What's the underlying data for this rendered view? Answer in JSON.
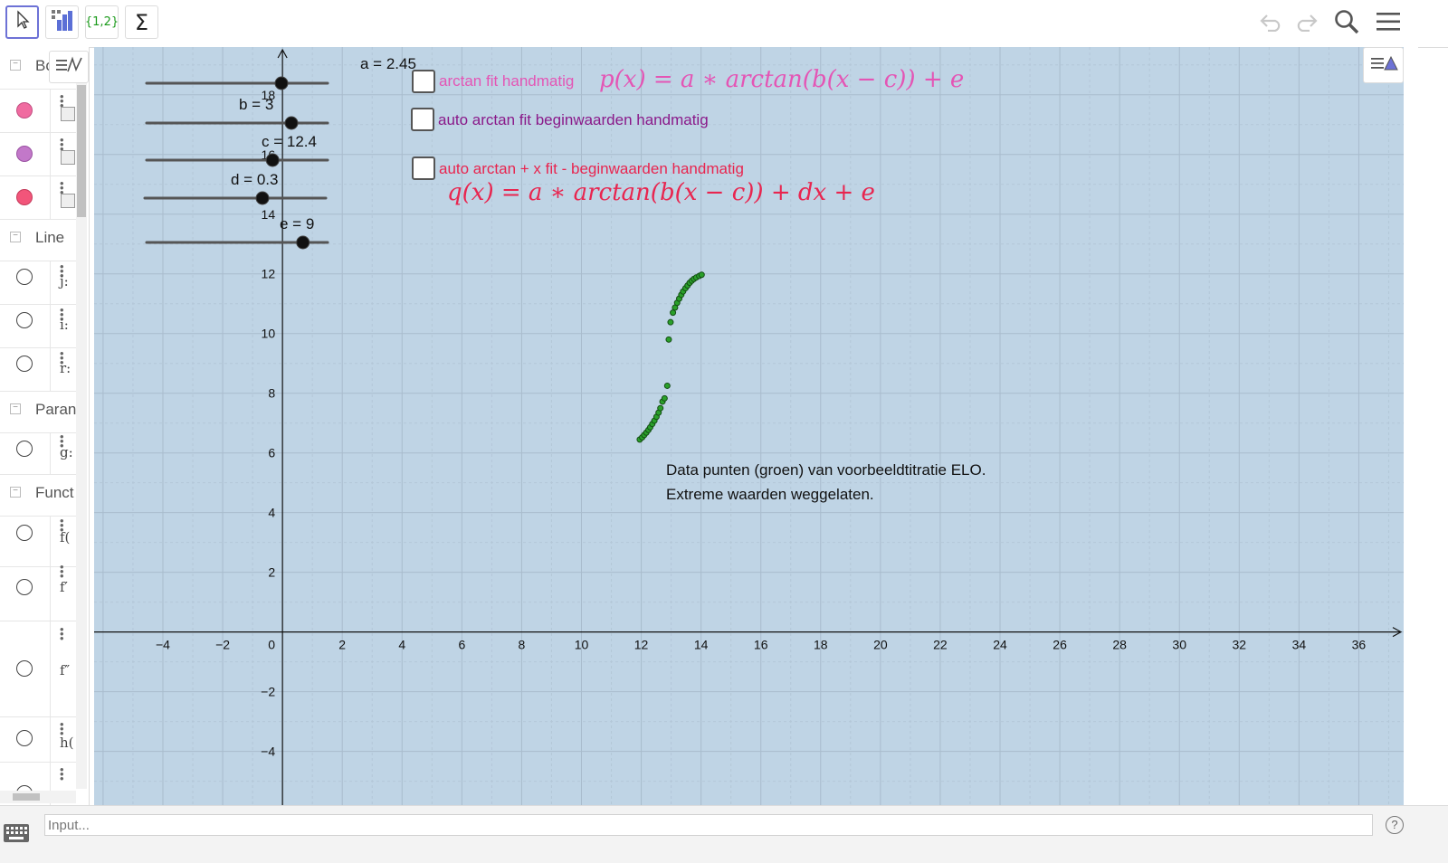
{
  "toolbar": {
    "tools": [
      {
        "name": "move-tool-button",
        "icon": "cursor-arrow-icon"
      },
      {
        "name": "statistics-tool-button",
        "icon": "bar-chart-icon"
      },
      {
        "name": "list-tool-button",
        "text": "{1,2}"
      },
      {
        "name": "sum-tool-button",
        "text": "Σ"
      }
    ],
    "right_icons": [
      "undo-icon",
      "redo-icon",
      "search-icon",
      "menu-icon"
    ]
  },
  "algebra": {
    "groups": [
      {
        "label": "Bo"
      },
      {
        "label": "Line"
      },
      {
        "label": "Paran"
      },
      {
        "label": "Funct"
      }
    ],
    "items": [
      {
        "label": "",
        "color": "#f06ba0",
        "filled": true
      },
      {
        "label": "",
        "color": "#c278c9",
        "filled": true
      },
      {
        "label": "",
        "color": "#f2557a",
        "filled": true
      },
      {
        "label": "j:",
        "filled": false
      },
      {
        "label": "i:",
        "filled": false
      },
      {
        "label": "r:",
        "filled": false
      },
      {
        "label": "g:",
        "filled": false
      },
      {
        "label": "f(",
        "filled": false
      },
      {
        "label": "f′",
        "filled": false
      },
      {
        "label": "f″",
        "filled": false
      },
      {
        "label": "h(",
        "filled": false
      },
      {
        "label": "",
        "filled": false
      }
    ]
  },
  "sliders": [
    {
      "label": "a = 2.45",
      "value": 2.45
    },
    {
      "label": "b = 3",
      "value": 3
    },
    {
      "label": "c = 12.4",
      "value": 12.4
    },
    {
      "label": "d = 0.3",
      "value": 0.3
    },
    {
      "label": "e = 9",
      "value": 9
    }
  ],
  "checkboxes": [
    {
      "label": "arctan fit handmatig",
      "color": "#e455b5",
      "checked": false
    },
    {
      "label": "auto arctan fit beginwaarden handmatig",
      "color": "#8a1a8a",
      "checked": false
    },
    {
      "label": "auto arctan + x fit - beginwaarden handmatig",
      "color": "#e8254f",
      "checked": false
    }
  ],
  "formulas": {
    "p": "p(x) = a ∗ arctan(b(x − c)) + e",
    "q": "q(x) = a ∗ arctan(b(x − c)) + dx + e",
    "p_color": "#e455b5",
    "q_color": "#e8254f"
  },
  "note": {
    "line1": "Data punten (groen) van voorbeeldtitratie ELO.",
    "line2": "Extreme waarden weggelaten."
  },
  "chart_data": {
    "type": "scatter",
    "x_ticks": [
      -4,
      -2,
      0,
      2,
      4,
      6,
      8,
      10,
      12,
      14,
      16,
      18,
      20,
      22,
      24,
      26,
      28,
      30,
      32,
      34,
      36
    ],
    "y_ticks": [
      -4,
      -2,
      2,
      4,
      6,
      8,
      10,
      12,
      14,
      16,
      18
    ],
    "xlim": [
      -6.3,
      37.5
    ],
    "ylim": [
      -5.8,
      19.6
    ],
    "grid": true,
    "point_color": "#2aa02a",
    "points": [
      [
        11.95,
        6.45
      ],
      [
        12.03,
        6.52
      ],
      [
        12.1,
        6.6
      ],
      [
        12.17,
        6.68
      ],
      [
        12.24,
        6.77
      ],
      [
        12.3,
        6.86
      ],
      [
        12.37,
        6.97
      ],
      [
        12.44,
        7.08
      ],
      [
        12.51,
        7.21
      ],
      [
        12.58,
        7.35
      ],
      [
        12.64,
        7.5
      ],
      [
        12.71,
        7.72
      ],
      [
        12.78,
        7.83
      ],
      [
        12.87,
        8.25
      ],
      [
        12.92,
        9.8
      ],
      [
        12.98,
        10.38
      ],
      [
        13.06,
        10.7
      ],
      [
        13.13,
        10.87
      ],
      [
        13.2,
        11.03
      ],
      [
        13.27,
        11.17
      ],
      [
        13.34,
        11.3
      ],
      [
        13.4,
        11.41
      ],
      [
        13.48,
        11.52
      ],
      [
        13.55,
        11.61
      ],
      [
        13.62,
        11.7
      ],
      [
        13.69,
        11.77
      ],
      [
        13.76,
        11.83
      ],
      [
        13.84,
        11.88
      ],
      [
        13.94,
        11.93
      ],
      [
        14.02,
        11.97
      ]
    ]
  },
  "input": {
    "placeholder": "Input..."
  }
}
